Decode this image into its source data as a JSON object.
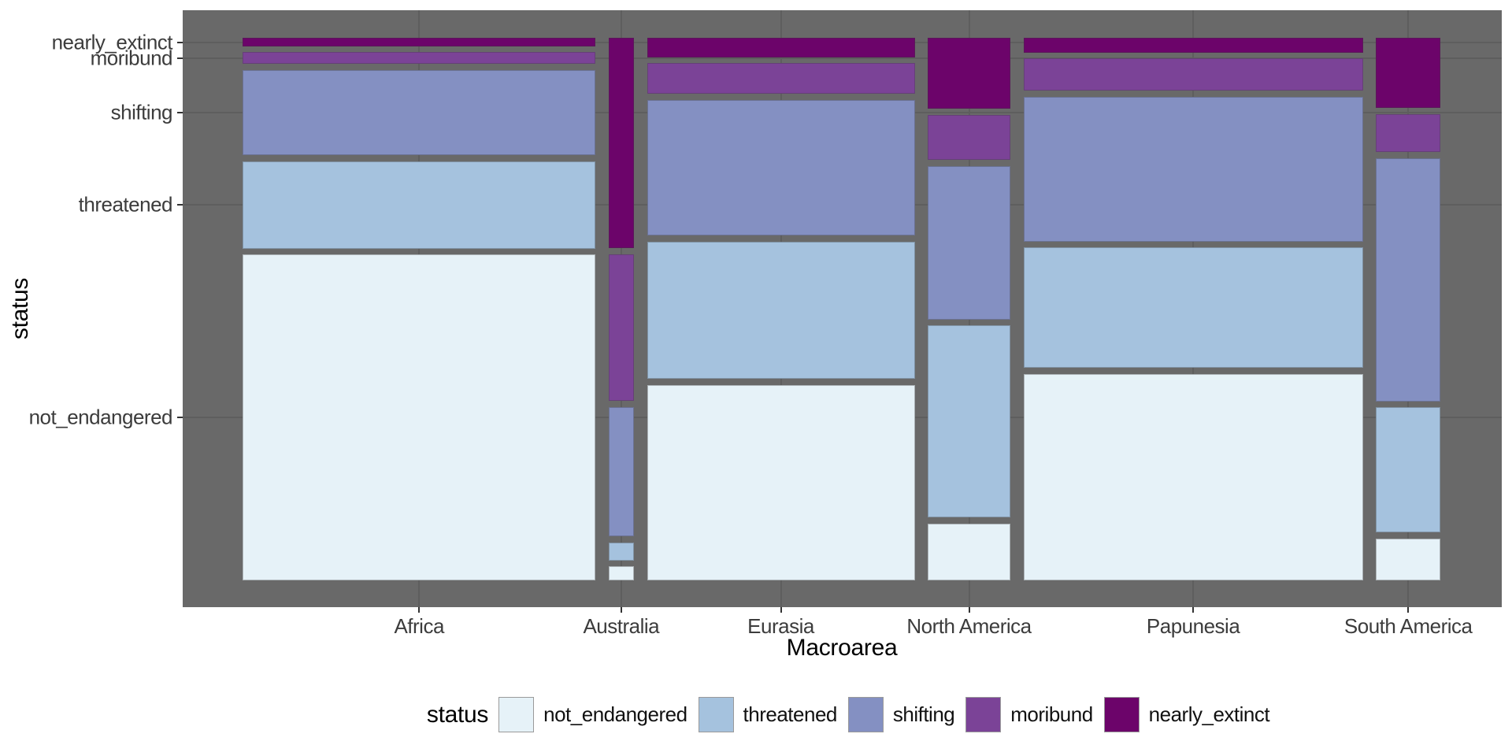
{
  "chart_data": {
    "type": "mosaic",
    "xlabel": "Macroarea",
    "ylabel": "status",
    "legend_title": "status",
    "statuses_bottom_to_top": [
      "not_endangered",
      "threatened",
      "shifting",
      "moribund",
      "nearly_extinct"
    ],
    "status_colors": {
      "not_endangered": "#E6F2F8",
      "threatened": "#A5C2DE",
      "shifting": "#8490C2",
      "moribund": "#7B4397",
      "nearly_extinct": "#6C046A"
    },
    "areas": [
      {
        "name": "Africa",
        "share": 0.3117,
        "status_props": {
          "not_endangered": 0.6278,
          "threatened": 0.1689,
          "shifting": 0.1648,
          "moribund": 0.0227,
          "nearly_extinct": 0.0159
        }
      },
      {
        "name": "Australia",
        "share": 0.0222,
        "status_props": {
          "not_endangered": 0.0269,
          "threatened": 0.0341,
          "shifting": 0.2502,
          "moribund": 0.283,
          "nearly_extinct": 0.4058
        }
      },
      {
        "name": "Eurasia",
        "share": 0.2366,
        "status_props": {
          "not_endangered": 0.3769,
          "threatened": 0.2645,
          "shifting": 0.262,
          "moribund": 0.0596,
          "nearly_extinct": 0.037
        }
      },
      {
        "name": "North America",
        "share": 0.0728,
        "status_props": {
          "not_endangered": 0.1089,
          "threatened": 0.371,
          "shifting": 0.2965,
          "moribund": 0.087,
          "nearly_extinct": 0.1366
        }
      },
      {
        "name": "Papunesia",
        "share": 0.3001,
        "status_props": {
          "not_endangered": 0.398,
          "threatened": 0.2322,
          "shifting": 0.2798,
          "moribund": 0.0619,
          "nearly_extinct": 0.028
        }
      },
      {
        "name": "South America",
        "share": 0.0568,
        "status_props": {
          "not_endangered": 0.08,
          "threatened": 0.242,
          "shifting": 0.4696,
          "moribund": 0.0733,
          "nearly_extinct": 0.1351
        }
      }
    ]
  },
  "colors": {
    "panel_bg": "#696969",
    "gridline": "#5e5e5e",
    "tick": "#333333",
    "axis_text": "#3c3c3c",
    "title_text": "#000000",
    "background": "#ffffff"
  }
}
